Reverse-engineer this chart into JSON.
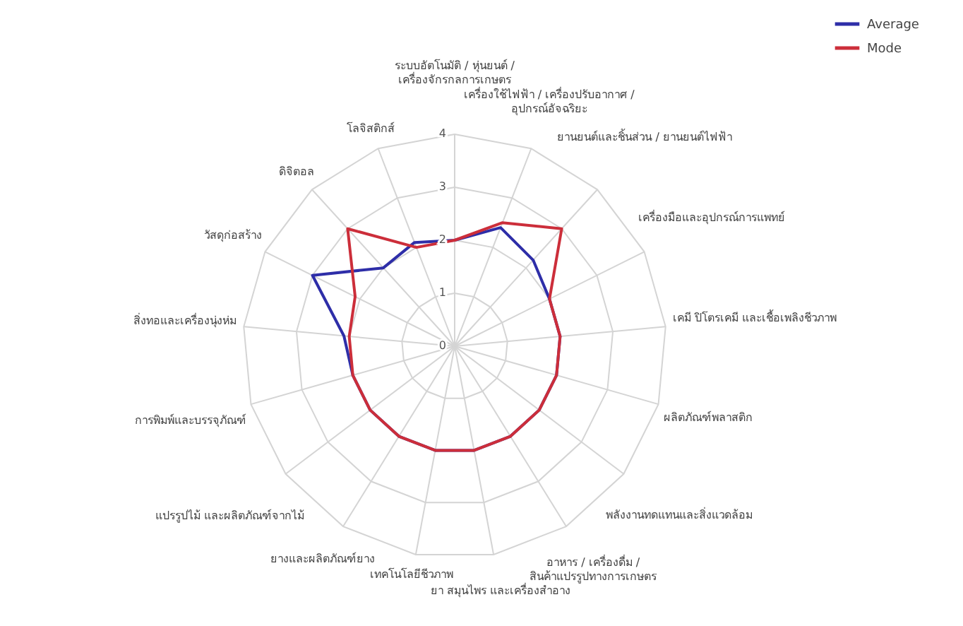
{
  "chart_data": {
    "type": "radar",
    "categories": [
      "ระบบอัตโนมัติ / หุ่นยนต์ / เครื่องจักรกลการเกษตร",
      "เครื่องใช้ไฟฟ้า / เครื่องปรับอากาศ / อุปกรณ์อัจฉริยะ",
      "ยานยนต์และชิ้นส่วน / ยานยนต์ไฟฟ้า",
      "เครื่องมือและอุปกรณ์การแพทย์",
      "เคมี ปิโตรเคมี และเชื้อเพลิงชีวภาพ",
      "ผลิตภัณฑ์พลาสติก",
      "พลังงานทดแทนและสิ่งแวดล้อม",
      "อาหาร / เครื่องดื่ม / สินค้าแปรรูปทางการเกษตร",
      "ยา สมุนไพร และเครื่องสำอาง",
      "เทคโนโลยีชีวภาพ",
      "ยางและผลิตภัณฑ์ยาง",
      "แปรรูปไม้ และผลิตภัณฑ์จากไม้",
      "การพิมพ์และบรรจุภัณฑ์",
      "สิ่งทอและเครื่องนุ่งห่ม",
      "วัสดุก่อสร้าง",
      "ดิจิตอล",
      "โลจิสติกส์"
    ],
    "series": [
      {
        "name": "Average",
        "color": "#2e2ea8",
        "values": [
          2,
          2.4,
          2.2,
          2,
          2,
          2,
          2,
          2,
          2,
          2,
          2,
          2,
          2,
          2.1,
          3,
          2,
          2.1
        ]
      },
      {
        "name": "Mode",
        "color": "#cc2e3a",
        "values": [
          2,
          2.5,
          3,
          2,
          2,
          2,
          2,
          2,
          2,
          2,
          2,
          2,
          2,
          2,
          2.1,
          3,
          2
        ]
      }
    ],
    "ylim": [
      0,
      4
    ],
    "yticks": [
      0,
      1,
      2,
      3,
      4
    ],
    "grid": true,
    "legend": "top right"
  }
}
